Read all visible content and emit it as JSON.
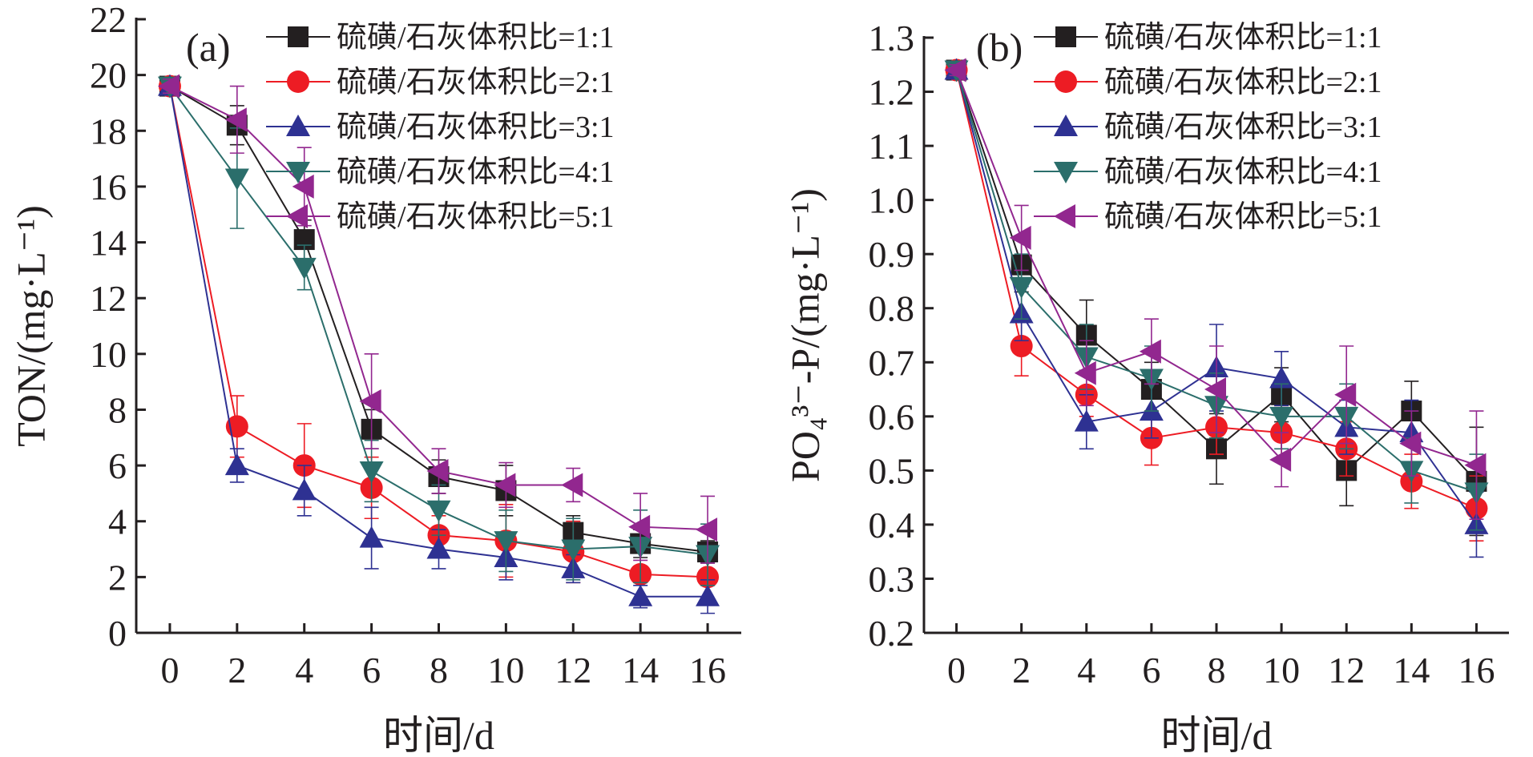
{
  "chart_data": [
    {
      "type": "line",
      "panel_label": "(a)",
      "xlabel": "时间/d",
      "ylabel": "TON/(mg·L⁻¹)",
      "x": [
        0,
        2,
        4,
        6,
        8,
        10,
        12,
        14,
        16
      ],
      "xlim": [
        -1,
        17
      ],
      "xticks": [
        "0",
        "2",
        "4",
        "6",
        "8",
        "10",
        "12",
        "14",
        "16"
      ],
      "ylim": [
        0,
        22
      ],
      "yticks": [
        "0",
        "2",
        "4",
        "6",
        "8",
        "10",
        "12",
        "14",
        "16",
        "18",
        "20",
        "22"
      ],
      "grid": false,
      "legend_position": "top-right",
      "series": [
        {
          "name": "硫磺/石灰体积比=1:1",
          "color": "#231f20",
          "marker": "square",
          "values": [
            19.6,
            18.2,
            14.1,
            7.3,
            5.6,
            5.1,
            3.6,
            3.2,
            2.9
          ],
          "errors": [
            0.25,
            0.7,
            0.7,
            0.7,
            0.6,
            0.9,
            0.6,
            0.5,
            0.4
          ]
        },
        {
          "name": "硫磺/石灰体积比=2:1",
          "color": "#ed1c24",
          "marker": "circle",
          "values": [
            19.6,
            7.4,
            6.0,
            5.2,
            3.5,
            3.3,
            2.9,
            2.1,
            2.0
          ],
          "errors": [
            0.25,
            1.1,
            1.5,
            1.1,
            0.7,
            1.3,
            1.1,
            1.0,
            0.9
          ]
        },
        {
          "name": "硫磺/石灰体积比=3:1",
          "color": "#2e3192",
          "marker": "triangle-up",
          "values": [
            19.6,
            6.0,
            5.1,
            3.4,
            3.0,
            2.7,
            2.3,
            1.3,
            1.3
          ],
          "errors": [
            0.25,
            0.6,
            0.9,
            1.1,
            0.7,
            0.8,
            0.5,
            0.4,
            0.6
          ]
        },
        {
          "name": "硫磺/石灰体积比=4:1",
          "color": "#2b6e6b",
          "marker": "triangle-down",
          "values": [
            19.6,
            16.3,
            13.1,
            5.8,
            4.4,
            3.3,
            3.0,
            3.1,
            2.8
          ],
          "errors": [
            0.25,
            1.8,
            0.8,
            1.1,
            0.9,
            1.1,
            1.1,
            1.3,
            1.1
          ]
        },
        {
          "name": "硫磺/石灰体积比=5:1",
          "color": "#92278f",
          "marker": "triangle-left",
          "values": [
            19.6,
            18.4,
            16.0,
            8.3,
            5.8,
            5.3,
            5.3,
            3.8,
            3.7
          ],
          "errors": [
            0.25,
            1.2,
            1.4,
            1.7,
            0.8,
            0.8,
            0.6,
            1.2,
            1.2
          ]
        }
      ]
    },
    {
      "type": "line",
      "panel_label": "(b)",
      "xlabel": "时间/d",
      "ylabel": "PO₄³⁻-P/(mg·L⁻¹)",
      "x": [
        0,
        2,
        4,
        6,
        8,
        10,
        12,
        14,
        16
      ],
      "xlim": [
        -1,
        17
      ],
      "xticks": [
        "0",
        "2",
        "4",
        "6",
        "8",
        "10",
        "12",
        "14",
        "16"
      ],
      "ylim": [
        0.2,
        1.3
      ],
      "yticks": [
        "0.2",
        "0.3",
        "0.4",
        "0.5",
        "0.6",
        "0.7",
        "0.8",
        "0.9",
        "1.0",
        "1.1",
        "1.2",
        "1.3"
      ],
      "grid": false,
      "legend_position": "top-right",
      "series": [
        {
          "name": "硫磺/石灰体积比=1:1",
          "color": "#231f20",
          "marker": "square",
          "values": [
            1.24,
            0.88,
            0.75,
            0.65,
            0.54,
            0.64,
            0.5,
            0.61,
            0.48
          ],
          "errors": [
            0.01,
            0.05,
            0.065,
            0.05,
            0.065,
            0.05,
            0.065,
            0.055,
            0.1
          ]
        },
        {
          "name": "硫磺/石灰体积比=2:1",
          "color": "#ed1c24",
          "marker": "circle",
          "values": [
            1.24,
            0.73,
            0.64,
            0.56,
            0.58,
            0.57,
            0.54,
            0.48,
            0.43
          ],
          "errors": [
            0.01,
            0.055,
            0.04,
            0.05,
            0.05,
            0.05,
            0.05,
            0.05,
            0.06
          ]
        },
        {
          "name": "硫磺/石灰体积比=3:1",
          "color": "#2e3192",
          "marker": "triangle-up",
          "values": [
            1.24,
            0.79,
            0.59,
            0.61,
            0.69,
            0.67,
            0.58,
            0.57,
            0.4
          ],
          "errors": [
            0.01,
            0.05,
            0.05,
            0.05,
            0.08,
            0.05,
            0.05,
            0.06,
            0.06
          ]
        },
        {
          "name": "硫磺/石灰体积比=4:1",
          "color": "#2b6e6b",
          "marker": "triangle-down",
          "values": [
            1.24,
            0.84,
            0.71,
            0.67,
            0.62,
            0.6,
            0.6,
            0.5,
            0.46
          ],
          "errors": [
            0.01,
            0.06,
            0.06,
            0.06,
            0.06,
            0.06,
            0.06,
            0.06,
            0.07
          ]
        },
        {
          "name": "硫磺/石灰体积比=5:1",
          "color": "#92278f",
          "marker": "triangle-left",
          "values": [
            1.24,
            0.93,
            0.68,
            0.72,
            0.65,
            0.52,
            0.64,
            0.55,
            0.51
          ],
          "errors": [
            0.01,
            0.06,
            0.06,
            0.06,
            0.08,
            0.05,
            0.09,
            0.06,
            0.1
          ]
        }
      ]
    }
  ]
}
